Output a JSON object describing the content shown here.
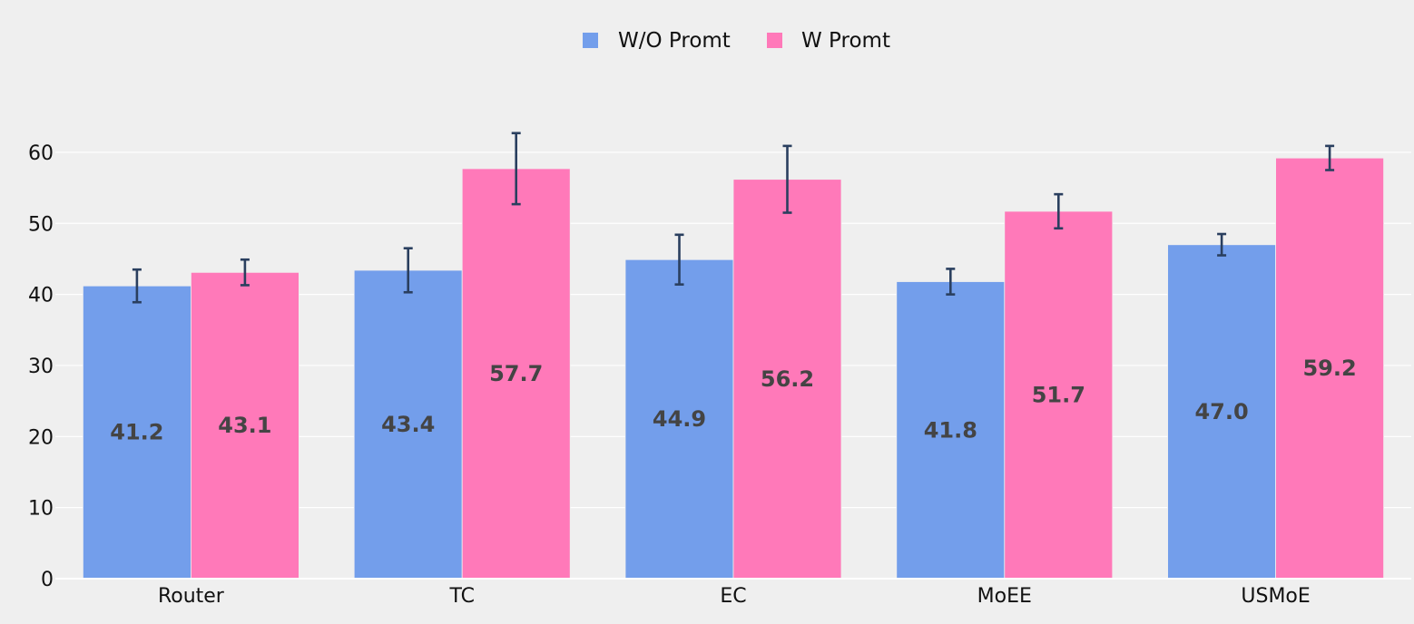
{
  "chart_data": {
    "type": "bar",
    "title": "",
    "xlabel": "",
    "ylabel": "",
    "categories": [
      "Router",
      "TC",
      "EC",
      "MoEE",
      "USMoE"
    ],
    "series": [
      {
        "name": "W/O Promt",
        "color": "#739eeb",
        "values": [
          41.2,
          43.4,
          44.9,
          41.8,
          47.0
        ],
        "labels": [
          "41.2",
          "43.4",
          "44.9",
          "41.8",
          "47.0"
        ],
        "error": [
          2.3,
          3.1,
          3.5,
          1.8,
          1.5
        ]
      },
      {
        "name": "W Promt",
        "color": "#ff79b9",
        "values": [
          43.1,
          57.7,
          56.2,
          51.7,
          59.2
        ],
        "labels": [
          "43.1",
          "57.7",
          "56.2",
          "51.7",
          "59.2"
        ],
        "error": [
          1.8,
          5.0,
          4.7,
          2.4,
          1.7
        ]
      }
    ],
    "ylim": [
      0,
      66.5
    ],
    "yticks": [
      0,
      10,
      20,
      30,
      40,
      50,
      60
    ],
    "ytick_labels": [
      "0",
      "10",
      "20",
      "30",
      "40",
      "50",
      "60"
    ],
    "grid": true,
    "legend": "top-center, horizontal",
    "colors": {
      "background": "#efefef",
      "grid": "#ffffff",
      "error_bar": "#2a3f5f",
      "data_label": "#444444"
    }
  }
}
